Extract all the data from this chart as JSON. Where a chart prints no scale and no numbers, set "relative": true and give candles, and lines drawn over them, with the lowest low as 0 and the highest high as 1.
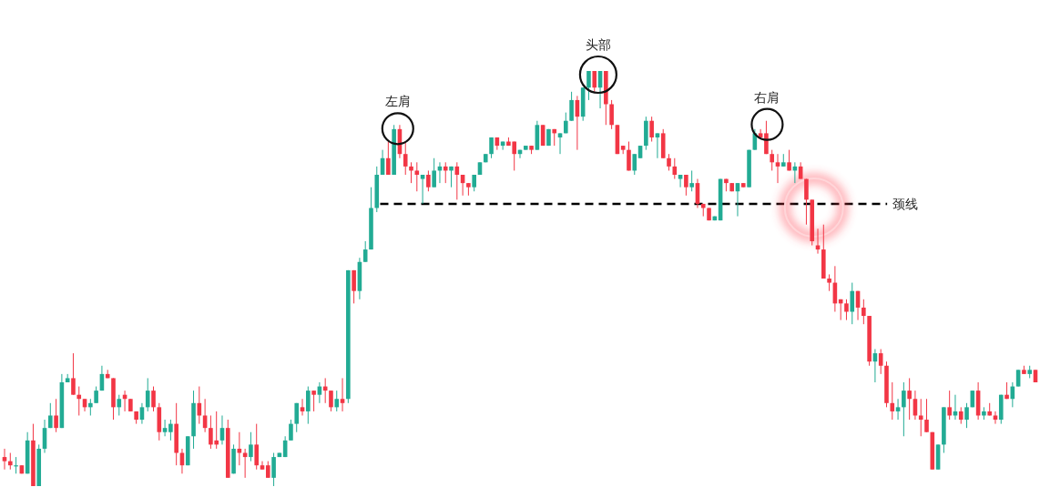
{
  "chart_data": {
    "type": "candlestick",
    "relative": true,
    "categories": [
      null,
      null,
      null,
      null,
      null,
      null,
      null,
      null,
      null,
      null,
      null,
      null,
      null,
      null,
      null,
      null,
      null,
      null,
      null,
      null,
      null,
      null,
      null,
      null,
      null,
      null,
      null,
      null,
      null,
      null,
      null,
      null,
      null,
      null,
      null,
      null,
      null,
      null,
      null,
      null,
      null,
      null,
      null,
      null,
      null,
      null,
      null,
      null,
      null,
      null,
      null,
      null,
      null,
      null,
      null,
      null,
      null,
      null,
      null,
      null,
      null,
      null,
      null,
      null,
      null,
      null,
      null,
      null,
      null,
      null,
      null,
      null,
      null,
      null,
      null,
      null,
      null,
      null,
      null,
      null,
      null,
      null,
      null,
      null,
      null,
      null,
      null,
      null,
      null,
      null,
      null,
      null,
      null,
      null,
      null,
      null,
      null,
      null,
      null,
      null,
      null,
      null,
      null,
      null,
      null,
      null,
      null,
      null,
      null,
      null,
      null,
      null,
      null,
      null,
      null,
      null,
      null,
      null,
      null,
      null,
      null,
      null,
      null,
      null,
      null,
      null,
      null,
      null,
      null,
      null,
      null,
      null,
      null,
      null,
      null,
      null,
      null,
      null,
      null,
      null,
      null,
      null,
      null,
      null,
      null,
      null,
      null,
      null,
      null,
      null,
      null,
      null,
      null,
      null,
      null,
      null,
      null,
      null,
      null,
      null,
      null,
      null,
      null,
      null,
      null,
      null,
      null,
      null,
      null,
      null,
      null,
      null,
      null,
      null,
      null,
      null,
      null,
      null,
      null,
      null,
      null
    ],
    "ohlc": [
      [
        0.07,
        0.09,
        0.04,
        0.06
      ],
      [
        0.06,
        0.08,
        0.04,
        0.05
      ],
      [
        0.05,
        0.07,
        0.03,
        0.05
      ],
      [
        0.05,
        0.05,
        0.03,
        0.03
      ],
      [
        0.03,
        0.13,
        0.03,
        0.11
      ],
      [
        0.11,
        0.15,
        0,
        0
      ],
      [
        0,
        0.1,
        0,
        0.09
      ],
      [
        0.09,
        0.16,
        0.08,
        0.14
      ],
      [
        0.14,
        0.2,
        0.14,
        0.17
      ],
      [
        0.17,
        0.21,
        0.13,
        0.14
      ],
      [
        0.14,
        0.27,
        0.14,
        0.25
      ],
      [
        0.25,
        0.27,
        0.25,
        0.26
      ],
      [
        0.26,
        0.32,
        0.22,
        0.22
      ],
      [
        0.22,
        0.24,
        0.17,
        0.21
      ],
      [
        0.21,
        0.21,
        0.18,
        0.19
      ],
      [
        0.19,
        0.21,
        0.17,
        0.2
      ],
      [
        0.2,
        0.24,
        0.2,
        0.23
      ],
      [
        0.23,
        0.29,
        0.23,
        0.27
      ],
      [
        0.27,
        0.28,
        0.26,
        0.26
      ],
      [
        0.26,
        0.26,
        0.16,
        0.19
      ],
      [
        0.19,
        0.22,
        0.17,
        0.21
      ],
      [
        0.22,
        0.23,
        0.18,
        0.21
      ],
      [
        0.21,
        0.21,
        0.18,
        0.18
      ],
      [
        0.18,
        0.18,
        0.15,
        0.16
      ],
      [
        0.16,
        0.2,
        0.15,
        0.19
      ],
      [
        0.19,
        0.26,
        0.18,
        0.23
      ],
      [
        0.23,
        0.24,
        0.18,
        0.19
      ],
      [
        0.19,
        0.2,
        0.11,
        0.13
      ],
      [
        0.13,
        0.16,
        0.12,
        0.14
      ],
      [
        0.13,
        0.16,
        0.11,
        0.15
      ],
      [
        0.15,
        0.2,
        0.05,
        0.08
      ],
      [
        0.08,
        0.09,
        0.03,
        0.05
      ],
      [
        0.05,
        0.12,
        0.05,
        0.12
      ],
      [
        0.12,
        0.23,
        0.09,
        0.2
      ],
      [
        0.2,
        0.24,
        0.15,
        0.17
      ],
      [
        0.17,
        0.21,
        0.13,
        0.14
      ],
      [
        0.14,
        0.17,
        0.09,
        0.1
      ],
      [
        0.11,
        0.18,
        0.09,
        0.1
      ],
      [
        0.11,
        0.17,
        0.1,
        0.14
      ],
      [
        0.14,
        0.16,
        0.02,
        0.02
      ],
      [
        0.03,
        0.1,
        0.03,
        0.09
      ],
      [
        0.09,
        0.13,
        0.05,
        0.08
      ],
      [
        0.08,
        0.09,
        0.02,
        0.07
      ],
      [
        0.07,
        0.13,
        0.06,
        0.1
      ],
      [
        0.1,
        0.15,
        0.04,
        0.05
      ],
      [
        0.05,
        0.06,
        0.04,
        0.04
      ],
      [
        0.05,
        0.06,
        0.02,
        0.02
      ],
      [
        0.02,
        0.08,
        0,
        0.07
      ],
      [
        0.07,
        0.08,
        0.07,
        0.08
      ],
      [
        0.07,
        0.12,
        0.07,
        0.11
      ],
      [
        0.11,
        0.16,
        0.11,
        0.15
      ],
      [
        0.15,
        0.2,
        0.13,
        0.2
      ],
      [
        0.19,
        0.21,
        0.17,
        0.18
      ],
      [
        0.18,
        0.24,
        0.15,
        0.23
      ],
      [
        0.23,
        0.23,
        0.18,
        0.22
      ],
      [
        0.22,
        0.25,
        0.2,
        0.24
      ],
      [
        0.24,
        0.26,
        0.2,
        0.23
      ],
      [
        0.23,
        0.23,
        0.18,
        0.19
      ],
      [
        0.19,
        0.23,
        0.18,
        0.21
      ],
      [
        0.21,
        0.26,
        0.18,
        0.2
      ],
      [
        0.21,
        0.52,
        0.2,
        0.52
      ],
      [
        0.52,
        0.52,
        0.44,
        0.47
      ],
      [
        0.47,
        0.55,
        0.45,
        0.54
      ],
      [
        0.54,
        0.59,
        0.54,
        0.57
      ],
      [
        0.57,
        0.72,
        0.57,
        0.67
      ],
      [
        0.67,
        0.77,
        0.66,
        0.75
      ],
      [
        0.75,
        0.81,
        0.75,
        0.79
      ],
      [
        0.79,
        0.83,
        0.75,
        0.75
      ],
      [
        0.75,
        0.87,
        0.75,
        0.86
      ],
      [
        0.86,
        0.87,
        0.79,
        0.8
      ],
      [
        0.8,
        0.83,
        0.75,
        0.77
      ],
      [
        0.77,
        0.78,
        0.73,
        0.76
      ],
      [
        0.76,
        0.78,
        0.71,
        0.75
      ],
      [
        0.74,
        0.75,
        0.68,
        0.75
      ],
      [
        0.75,
        0.76,
        0.71,
        0.72
      ],
      [
        0.72,
        0.79,
        0.72,
        0.76
      ],
      [
        0.76,
        0.78,
        0.73,
        0.77
      ],
      [
        0.77,
        0.78,
        0.73,
        0.76
      ],
      [
        0.76,
        0.77,
        0.72,
        0.77
      ],
      [
        0.77,
        0.78,
        0.69,
        0.75
      ],
      [
        0.75,
        0.75,
        0.7,
        0.73
      ],
      [
        0.73,
        0.73,
        0.7,
        0.72
      ],
      [
        0.72,
        0.75,
        0.71,
        0.75
      ],
      [
        0.75,
        0.78,
        0.75,
        0.78
      ],
      [
        0.78,
        0.8,
        0.78,
        0.8
      ],
      [
        0.8,
        0.84,
        0.79,
        0.84
      ],
      [
        0.84,
        0.84,
        0.81,
        0.82
      ],
      [
        0.82,
        0.83,
        0.81,
        0.83
      ],
      [
        0.83,
        0.84,
        0.82,
        0.82
      ],
      [
        0.83,
        0.83,
        0.76,
        0.8
      ],
      [
        0.8,
        0.81,
        0.79,
        0.81
      ],
      [
        0.81,
        0.82,
        0.81,
        0.82
      ],
      [
        0.82,
        0.82,
        0.8,
        0.81
      ],
      [
        0.81,
        0.88,
        0.81,
        0.87
      ],
      [
        0.87,
        0.87,
        0.82,
        0.82
      ],
      [
        0.82,
        0.86,
        0.82,
        0.86
      ],
      [
        0.86,
        0.86,
        0.82,
        0.85
      ],
      [
        0.84,
        0.85,
        0.8,
        0.85
      ],
      [
        0.85,
        0.9,
        0.85,
        0.88
      ],
      [
        0.88,
        0.95,
        0.88,
        0.93
      ],
      [
        0.93,
        0.94,
        0.81,
        0.89
      ],
      [
        0.89,
        0.96,
        0.88,
        0.96
      ],
      [
        0.96,
        1,
        0.93,
        1
      ],
      [
        1,
        1,
        0.95,
        0.96
      ],
      [
        0.96,
        1,
        0.91,
        1
      ],
      [
        1,
        1,
        0.87,
        0.92
      ],
      [
        0.92,
        0.93,
        0.86,
        0.87
      ],
      [
        0.87,
        0.87,
        0.8,
        0.8
      ],
      [
        0.82,
        0.82,
        0.8,
        0.81
      ],
      [
        0.81,
        0.83,
        0.76,
        0.76
      ],
      [
        0.76,
        0.8,
        0.75,
        0.8
      ],
      [
        0.79,
        0.82,
        0.79,
        0.82
      ],
      [
        0.82,
        0.89,
        0.81,
        0.88
      ],
      [
        0.88,
        0.89,
        0.83,
        0.84
      ],
      [
        0.84,
        0.85,
        0.79,
        0.85
      ],
      [
        0.85,
        0.86,
        0.79,
        0.79
      ],
      [
        0.79,
        0.8,
        0.76,
        0.77
      ],
      [
        0.77,
        0.79,
        0.74,
        0.75
      ],
      [
        0.74,
        0.75,
        0.72,
        0.75
      ],
      [
        0.75,
        0.75,
        0.7,
        0.72
      ],
      [
        0.72,
        0.76,
        0.71,
        0.73
      ],
      [
        0.73,
        0.74,
        0.67,
        0.68
      ],
      [
        0.68,
        0.68,
        0.65,
        0.67
      ],
      [
        0.67,
        0.67,
        0.64,
        0.64
      ],
      [
        0.64,
        0.65,
        0.64,
        0.65
      ],
      [
        0.64,
        0.74,
        0.64,
        0.74
      ],
      [
        0.74,
        0.74,
        0.71,
        0.73
      ],
      [
        0.73,
        0.73,
        0.71,
        0.71
      ],
      [
        0.71,
        0.73,
        0.65,
        0.73
      ],
      [
        0.73,
        0.73,
        0.72,
        0.72
      ],
      [
        0.72,
        0.81,
        0.72,
        0.81
      ],
      [
        0.81,
        0.86,
        0.81,
        0.85
      ],
      [
        0.85,
        0.86,
        0.84,
        0.84
      ],
      [
        0.85,
        0.88,
        0.8,
        0.8
      ],
      [
        0.8,
        0.81,
        0.76,
        0.78
      ],
      [
        0.78,
        0.8,
        0.73,
        0.77
      ],
      [
        0.77,
        0.8,
        0.77,
        0.78
      ],
      [
        0.78,
        0.81,
        0.76,
        0.76
      ],
      [
        0.76,
        0.78,
        0.73,
        0.77
      ],
      [
        0.77,
        0.78,
        0.74,
        0.74
      ],
      [
        0.74,
        0.74,
        0.63,
        0.69
      ],
      [
        0.69,
        0.69,
        0.58,
        0.59
      ],
      [
        0.58,
        0.62,
        0.56,
        0.57
      ],
      [
        0.57,
        0.63,
        0.5,
        0.5
      ],
      [
        0.5,
        0.51,
        0.47,
        0.49
      ],
      [
        0.49,
        0.53,
        0.42,
        0.44
      ],
      [
        0.45,
        0.45,
        0.4,
        0.44
      ],
      [
        0.44,
        0.45,
        0.4,
        0.42
      ],
      [
        0.42,
        0.49,
        0.39,
        0.47
      ],
      [
        0.47,
        0.47,
        0.4,
        0.43
      ],
      [
        0.43,
        0.45,
        0.39,
        0.41
      ],
      [
        0.41,
        0.41,
        0.29,
        0.3
      ],
      [
        0.3,
        0.33,
        0.25,
        0.32
      ],
      [
        0.32,
        0.33,
        0.27,
        0.29
      ],
      [
        0.29,
        0.3,
        0.19,
        0.2
      ],
      [
        0.2,
        0.25,
        0.16,
        0.18
      ],
      [
        0.18,
        0.21,
        0.16,
        0.19
      ],
      [
        0.19,
        0.25,
        0.12,
        0.23
      ],
      [
        0.23,
        0.26,
        0.16,
        0.21
      ],
      [
        0.21,
        0.23,
        0.16,
        0.17
      ],
      [
        0.17,
        0.21,
        0.12,
        0.16
      ],
      [
        0.16,
        0.21,
        0.13,
        0.13
      ],
      [
        0.13,
        0.13,
        0.04,
        0.04
      ],
      [
        0.04,
        0.1,
        0.04,
        0.1
      ],
      [
        0.1,
        0.19,
        0.08,
        0.19
      ],
      [
        0.19,
        0.23,
        0.16,
        0.17
      ],
      [
        0.17,
        0.22,
        0.16,
        0.18
      ],
      [
        0.18,
        0.19,
        0.15,
        0.16
      ],
      [
        0.16,
        0.2,
        0.14,
        0.19
      ],
      [
        0.19,
        0.23,
        0.19,
        0.23
      ],
      [
        0.23,
        0.25,
        0.16,
        0.17
      ],
      [
        0.17,
        0.19,
        0.16,
        0.18
      ],
      [
        0.18,
        0.2,
        0.17,
        0.17
      ],
      [
        0.17,
        0.18,
        0.15,
        0.16
      ],
      [
        0.16,
        0.22,
        0.15,
        0.22
      ],
      [
        0.22,
        0.25,
        0.21,
        0.21
      ],
      [
        0.21,
        0.25,
        0.19,
        0.24
      ],
      [
        0.24,
        0.28,
        0.24,
        0.28
      ],
      [
        0.28,
        0.29,
        0.27,
        0.27
      ],
      [
        0.27,
        0.29,
        0.26,
        0.28
      ],
      [
        0.28,
        0.28,
        0.25,
        0.25
      ]
    ],
    "ref_lines": [
      {
        "axis": "y",
        "value": 0.68,
        "label": "颈线",
        "line_style": "dashed",
        "color": "#000000"
      }
    ],
    "annotations": [
      {
        "text": "左肩",
        "y": 0.87
      },
      {
        "text": "头部",
        "y": 1
      },
      {
        "text": "右肩",
        "y": 0.88
      }
    ]
  }
}
